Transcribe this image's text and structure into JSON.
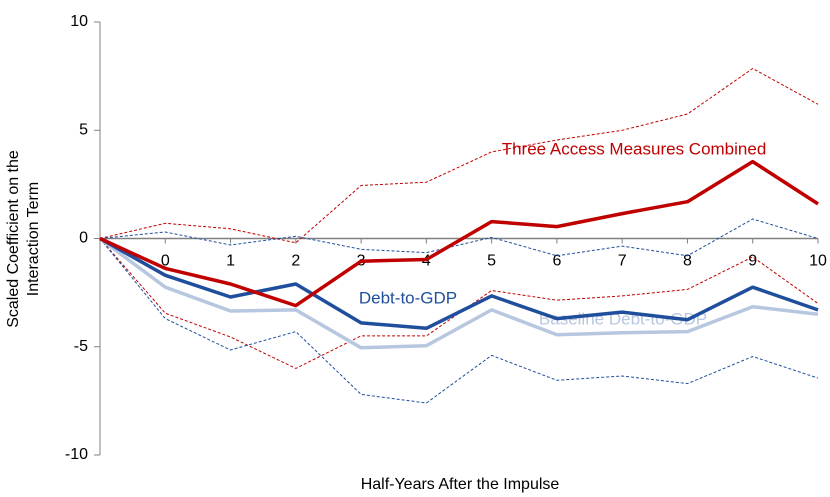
{
  "chart_data": {
    "type": "line",
    "xlabel": "Half-Years After the Impulse",
    "ylabel": [
      "Scaled Coefficient on the",
      "Interaction Term"
    ],
    "x": [
      -1,
      0,
      1,
      2,
      3,
      4,
      5,
      6,
      7,
      8,
      9,
      10
    ],
    "xlim": [
      -1,
      10
    ],
    "xticks": [
      0,
      1,
      2,
      3,
      4,
      5,
      6,
      7,
      8,
      9,
      10
    ],
    "ylim": [
      -10,
      10
    ],
    "yticks": [
      -10,
      -5,
      0,
      5,
      10
    ],
    "grid": false,
    "series": [
      {
        "color": "#c00000",
        "dashed": true,
        "values": [
          0,
          0.7,
          0.45,
          -0.2,
          2.45,
          2.6,
          4.0,
          4.55,
          5.0,
          5.75,
          7.85,
          6.2
        ]
      },
      {
        "color": "#c00000",
        "dashed": true,
        "values": [
          0,
          -3.45,
          -4.55,
          -6.0,
          -4.5,
          -4.5,
          -2.4,
          -2.85,
          -2.65,
          -2.35,
          -0.85,
          -3.0
        ]
      },
      {
        "color": "#1f4e9c",
        "dashed": true,
        "values": [
          0,
          0.3,
          -0.3,
          0.1,
          -0.5,
          -0.65,
          0.05,
          -0.8,
          -0.35,
          -0.8,
          0.9,
          0
        ]
      },
      {
        "color": "#1f4e9c",
        "dashed": true,
        "values": [
          0,
          -3.7,
          -5.15,
          -4.3,
          -7.2,
          -7.6,
          -5.4,
          -6.55,
          -6.35,
          -6.7,
          -5.45,
          -6.45
        ]
      },
      {
        "name": "Baseline Debt-to-GDP",
        "color": "#b8c7e0",
        "values": [
          0,
          -2.25,
          -3.35,
          -3.3,
          -5.05,
          -4.95,
          -3.3,
          -4.45,
          -4.35,
          -4.3,
          -3.15,
          -3.5
        ]
      },
      {
        "name": "Debt-to-GDP",
        "color": "#1f4e9c",
        "values": [
          0,
          -1.7,
          -2.7,
          -2.1,
          -3.9,
          -4.15,
          -2.65,
          -3.7,
          -3.4,
          -3.75,
          -2.25,
          -3.3
        ]
      },
      {
        "name": "Three Access Measures Combined",
        "color": "#c00000",
        "values": [
          0,
          -1.38,
          -2.1,
          -3.1,
          -1.05,
          -0.97,
          0.78,
          0.55,
          1.15,
          1.7,
          3.55,
          1.6
        ]
      }
    ]
  }
}
